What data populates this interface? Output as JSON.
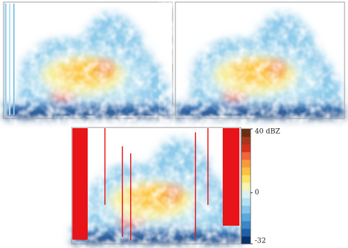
{
  "chart_data": {
    "type": "colorbar",
    "clim": [
      -32,
      40
    ],
    "ticks": [
      {
        "value": 40,
        "label": "40 dBZ"
      },
      0,
      -32
    ],
    "colormap": [
      "#08306b",
      "#1f5fa8",
      "#3a86c8",
      "#5ba8dc",
      "#86c6ea",
      "#b3e0f2",
      "#d9f2f0",
      "#f7f3b0",
      "#fde26a",
      "#fcc23d",
      "#f99a3a",
      "#f1663a",
      "#d7301f",
      "#a6361c",
      "#6b2d12"
    ]
  }
}
